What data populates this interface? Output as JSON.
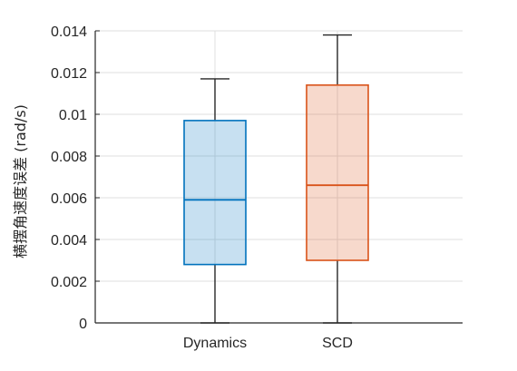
{
  "chart_data": {
    "type": "box",
    "title": "",
    "xlabel": "",
    "ylabel": "横摆角速度误差 (rad/s)",
    "ylim": [
      0,
      0.014
    ],
    "yticks": [
      0,
      0.002,
      0.004,
      0.006,
      0.008,
      0.01,
      0.012,
      0.014
    ],
    "ytick_labels": [
      "0",
      "0.002",
      "0.004",
      "0.006",
      "0.008",
      "0.01",
      "0.012",
      "0.014"
    ],
    "grid": true,
    "categories": [
      "Dynamics",
      "SCD"
    ],
    "boxes": [
      {
        "name": "Dynamics",
        "min": 0,
        "q1": 0.0028,
        "median": 0.0059,
        "q3": 0.0097,
        "max": 0.0117,
        "color": "#0072BD"
      },
      {
        "name": "SCD",
        "min": 0,
        "q1": 0.003,
        "median": 0.0066,
        "q3": 0.0114,
        "max": 0.0138,
        "color": "#D95319"
      }
    ]
  }
}
